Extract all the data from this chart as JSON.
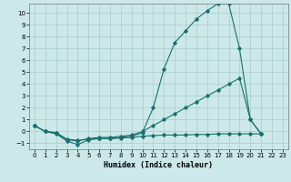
{
  "title": "",
  "xlabel": "Humidex (Indice chaleur)",
  "bg_color": "#cce8e8",
  "grid_color": "#aacccc",
  "line_color": "#1a7070",
  "xlim": [
    -0.5,
    23.5
  ],
  "ylim": [
    -1.5,
    10.8
  ],
  "xticks": [
    0,
    1,
    2,
    3,
    4,
    5,
    6,
    7,
    8,
    9,
    10,
    11,
    12,
    13,
    14,
    15,
    16,
    17,
    18,
    19,
    20,
    21,
    22,
    23
  ],
  "yticks": [
    -1,
    0,
    1,
    2,
    3,
    4,
    5,
    6,
    7,
    8,
    9,
    10
  ],
  "line1_x": [
    0,
    1,
    2,
    3,
    4,
    5,
    6,
    7,
    8,
    9,
    10,
    11,
    12,
    13,
    14,
    15,
    16,
    17,
    18,
    19,
    20,
    21
  ],
  "line1_y": [
    0.5,
    0.0,
    -0.2,
    -0.8,
    -1.1,
    -0.7,
    -0.6,
    -0.6,
    -0.5,
    -0.4,
    -0.1,
    2.0,
    5.3,
    7.5,
    8.5,
    9.5,
    10.2,
    10.8,
    10.8,
    7.0,
    1.0,
    -0.2
  ],
  "line2_x": [
    0,
    1,
    2,
    3,
    4,
    5,
    6,
    7,
    8,
    9,
    10,
    11,
    12,
    13,
    14,
    15,
    16,
    17,
    18,
    19,
    20,
    21
  ],
  "line2_y": [
    0.5,
    0.0,
    -0.1,
    -0.7,
    -0.8,
    -0.6,
    -0.5,
    -0.5,
    -0.4,
    -0.3,
    0.0,
    0.5,
    1.0,
    1.5,
    2.0,
    2.5,
    3.0,
    3.5,
    4.0,
    4.5,
    1.0,
    -0.2
  ],
  "line3_x": [
    0,
    1,
    2,
    3,
    4,
    5,
    6,
    7,
    8,
    9,
    10,
    11,
    12,
    13,
    14,
    15,
    16,
    17,
    18,
    19,
    20,
    21
  ],
  "line3_y": [
    0.5,
    0.0,
    -0.1,
    -0.65,
    -0.75,
    -0.65,
    -0.6,
    -0.6,
    -0.55,
    -0.5,
    -0.4,
    -0.35,
    -0.3,
    -0.3,
    -0.3,
    -0.25,
    -0.25,
    -0.2,
    -0.2,
    -0.2,
    -0.2,
    -0.2
  ],
  "xlabel_fontsize": 6,
  "tick_fontsize": 5
}
